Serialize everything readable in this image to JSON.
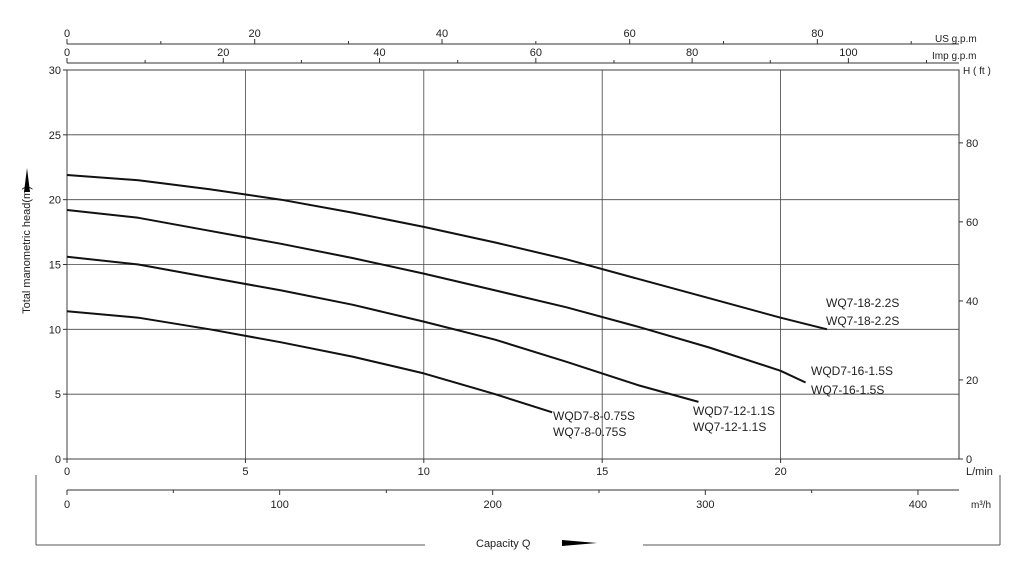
{
  "chart_data": {
    "type": "line",
    "xlabel": "Capacity Q",
    "ylabel": "Total manometric head(m)",
    "xlim": [
      0,
      25
    ],
    "ylim": [
      0,
      30
    ],
    "grid": true,
    "axes": {
      "x_main": {
        "unit": "L/min",
        "ticks": [
          "0",
          "5",
          "10",
          "15",
          "20"
        ],
        "tick_values": [
          0,
          5,
          10,
          15,
          20
        ]
      },
      "x_m3h": {
        "unit": "m³/h",
        "ticks": [
          "0",
          "100",
          "200",
          "300",
          "400"
        ],
        "tick_values_lmin": [
          0,
          5.96,
          11.93,
          17.89,
          23.85
        ]
      },
      "x_us_gpm": {
        "unit": "US g.p.m",
        "ticks": [
          "0",
          "20",
          "40",
          "60",
          "80"
        ],
        "tick_values_lmin": [
          0,
          5.26,
          10.51,
          15.77,
          21.03
        ]
      },
      "x_imp_gpm": {
        "unit": "Imp g.p.m",
        "ticks": [
          "0",
          "20",
          "40",
          "60",
          "80",
          "100"
        ],
        "tick_values_lmin": [
          0,
          4.38,
          8.76,
          13.14,
          17.52,
          21.9
        ]
      },
      "y_left": {
        "ticks": [
          "0",
          "5",
          "10",
          "15",
          "20",
          "25",
          "30"
        ],
        "tick_values": [
          0,
          5,
          10,
          15,
          20,
          25,
          30
        ]
      },
      "y_right": {
        "unit": "H ( ft )",
        "ticks": [
          "0",
          "20",
          "40",
          "60",
          "80"
        ],
        "tick_values_m": [
          0,
          6.1,
          12.19,
          18.29,
          24.38
        ]
      }
    },
    "series": [
      {
        "x": [
          0,
          2,
          4,
          6,
          8,
          10,
          12,
          14,
          16,
          18,
          20,
          21.3
        ],
        "y": [
          21.9,
          21.5,
          20.8,
          20.0,
          19.0,
          17.9,
          16.7,
          15.4,
          13.9,
          12.4,
          10.9,
          10.0
        ],
        "labels": [
          "WQ7-18-2.2S",
          "WQ7-18-2.2S"
        ]
      },
      {
        "x": [
          0,
          2,
          4,
          6,
          8,
          10,
          12,
          14,
          16,
          18,
          20,
          20.7
        ],
        "y": [
          19.2,
          18.6,
          17.6,
          16.6,
          15.5,
          14.3,
          13.0,
          11.7,
          10.2,
          8.6,
          6.8,
          5.9
        ],
        "labels": [
          "WQD7-16-1.5S",
          "WQ7-16-1.5S"
        ]
      },
      {
        "x": [
          0,
          2,
          4,
          6,
          8,
          10,
          12,
          14,
          16,
          17.7
        ],
        "y": [
          15.6,
          15.0,
          14.0,
          13.0,
          11.9,
          10.6,
          9.2,
          7.5,
          5.7,
          4.4
        ],
        "labels": [
          "WQD7-12-1.1S",
          "WQ7-12-1.1S"
        ]
      },
      {
        "x": [
          0,
          2,
          4,
          6,
          8,
          10,
          12,
          13.6
        ],
        "y": [
          11.4,
          10.9,
          10.0,
          9.0,
          7.9,
          6.6,
          5.0,
          3.6
        ],
        "labels": [
          "WQD7-8-0.75S",
          "WQ7-8-0.75S"
        ]
      }
    ]
  }
}
